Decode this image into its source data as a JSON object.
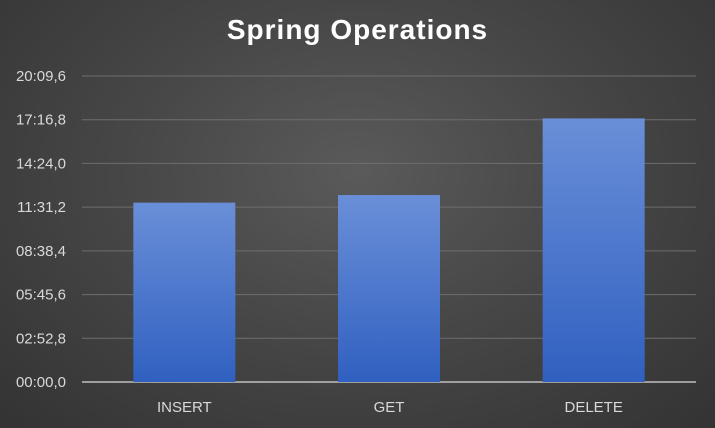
{
  "chart_data": {
    "type": "bar",
    "title": "Spring Operations",
    "xlabel": "",
    "ylabel": "",
    "categories": [
      "INSERT",
      "GET",
      "DELETE"
    ],
    "series": [
      {
        "values": [
          709,
          739,
          1042
        ]
      }
    ],
    "value_units": "seconds",
    "ylim": [
      0,
      1209.6
    ],
    "yticks": [
      0,
      172.8,
      345.6,
      518.4,
      691.2,
      864.0,
      1036.8,
      1209.6
    ],
    "ytick_labels": [
      "00:00,0",
      "02:52,8",
      "05:45,6",
      "08:38,4",
      "11:31,2",
      "14:24,0",
      "17:16,8",
      "20:09,6"
    ],
    "grid": true,
    "legend": "none",
    "colors": {
      "bar_top": "#6a8fd8",
      "bar_bottom": "#3060c0",
      "gridline": "#6e6e6e",
      "axis": "#bfbfbf",
      "text": "#d9d9d9"
    }
  }
}
